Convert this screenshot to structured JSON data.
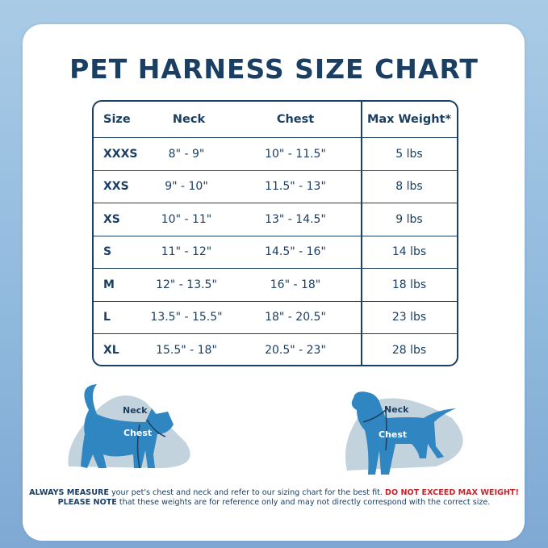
{
  "title": "PET HARNESS SIZE CHART",
  "table": {
    "headers": [
      "Size",
      "Neck",
      "Chest",
      "Max Weight*"
    ],
    "rows": [
      [
        "XXXS",
        "8\" - 9\"",
        "10\" - 11.5\"",
        "5 lbs"
      ],
      [
        "XXS",
        "9\" - 10\"",
        "11.5\" - 13\"",
        "8 lbs"
      ],
      [
        "XS",
        "10\" - 11\"",
        "13\" - 14.5\"",
        "9 lbs"
      ],
      [
        "S",
        "11\" - 12\"",
        "14.5\" - 16\"",
        "14 lbs"
      ],
      [
        "M",
        "12\" - 13.5\"",
        "16\" - 18\"",
        "18 lbs"
      ],
      [
        "L",
        "13.5\" - 15.5\"",
        "18\" - 20.5\"",
        "23 lbs"
      ],
      [
        "XL",
        "15.5\" - 18\"",
        "20.5\" - 23\"",
        "28 lbs"
      ]
    ]
  },
  "illustrations": {
    "cat": {
      "neck": "Neck",
      "chest": "Chest"
    },
    "dog": {
      "neck": "Neck",
      "chest": "Chest"
    }
  },
  "footer": {
    "line1_bold": "ALWAYS MEASURE",
    "line1_text": " your pet's chest and neck and refer  to our sizing chart for the best fit. ",
    "line1_warning": "DO NOT EXCEED MAX WEIGHT!",
    "line2_bold": "PLEASE NOTE",
    "line2_text": " that these weights are for reference only and may not directly correspond with the correct size."
  },
  "colors": {
    "navy": "#1b3f62",
    "animal": "#2f86c0",
    "blob": "#c3d3de",
    "warning": "#c8232b"
  }
}
